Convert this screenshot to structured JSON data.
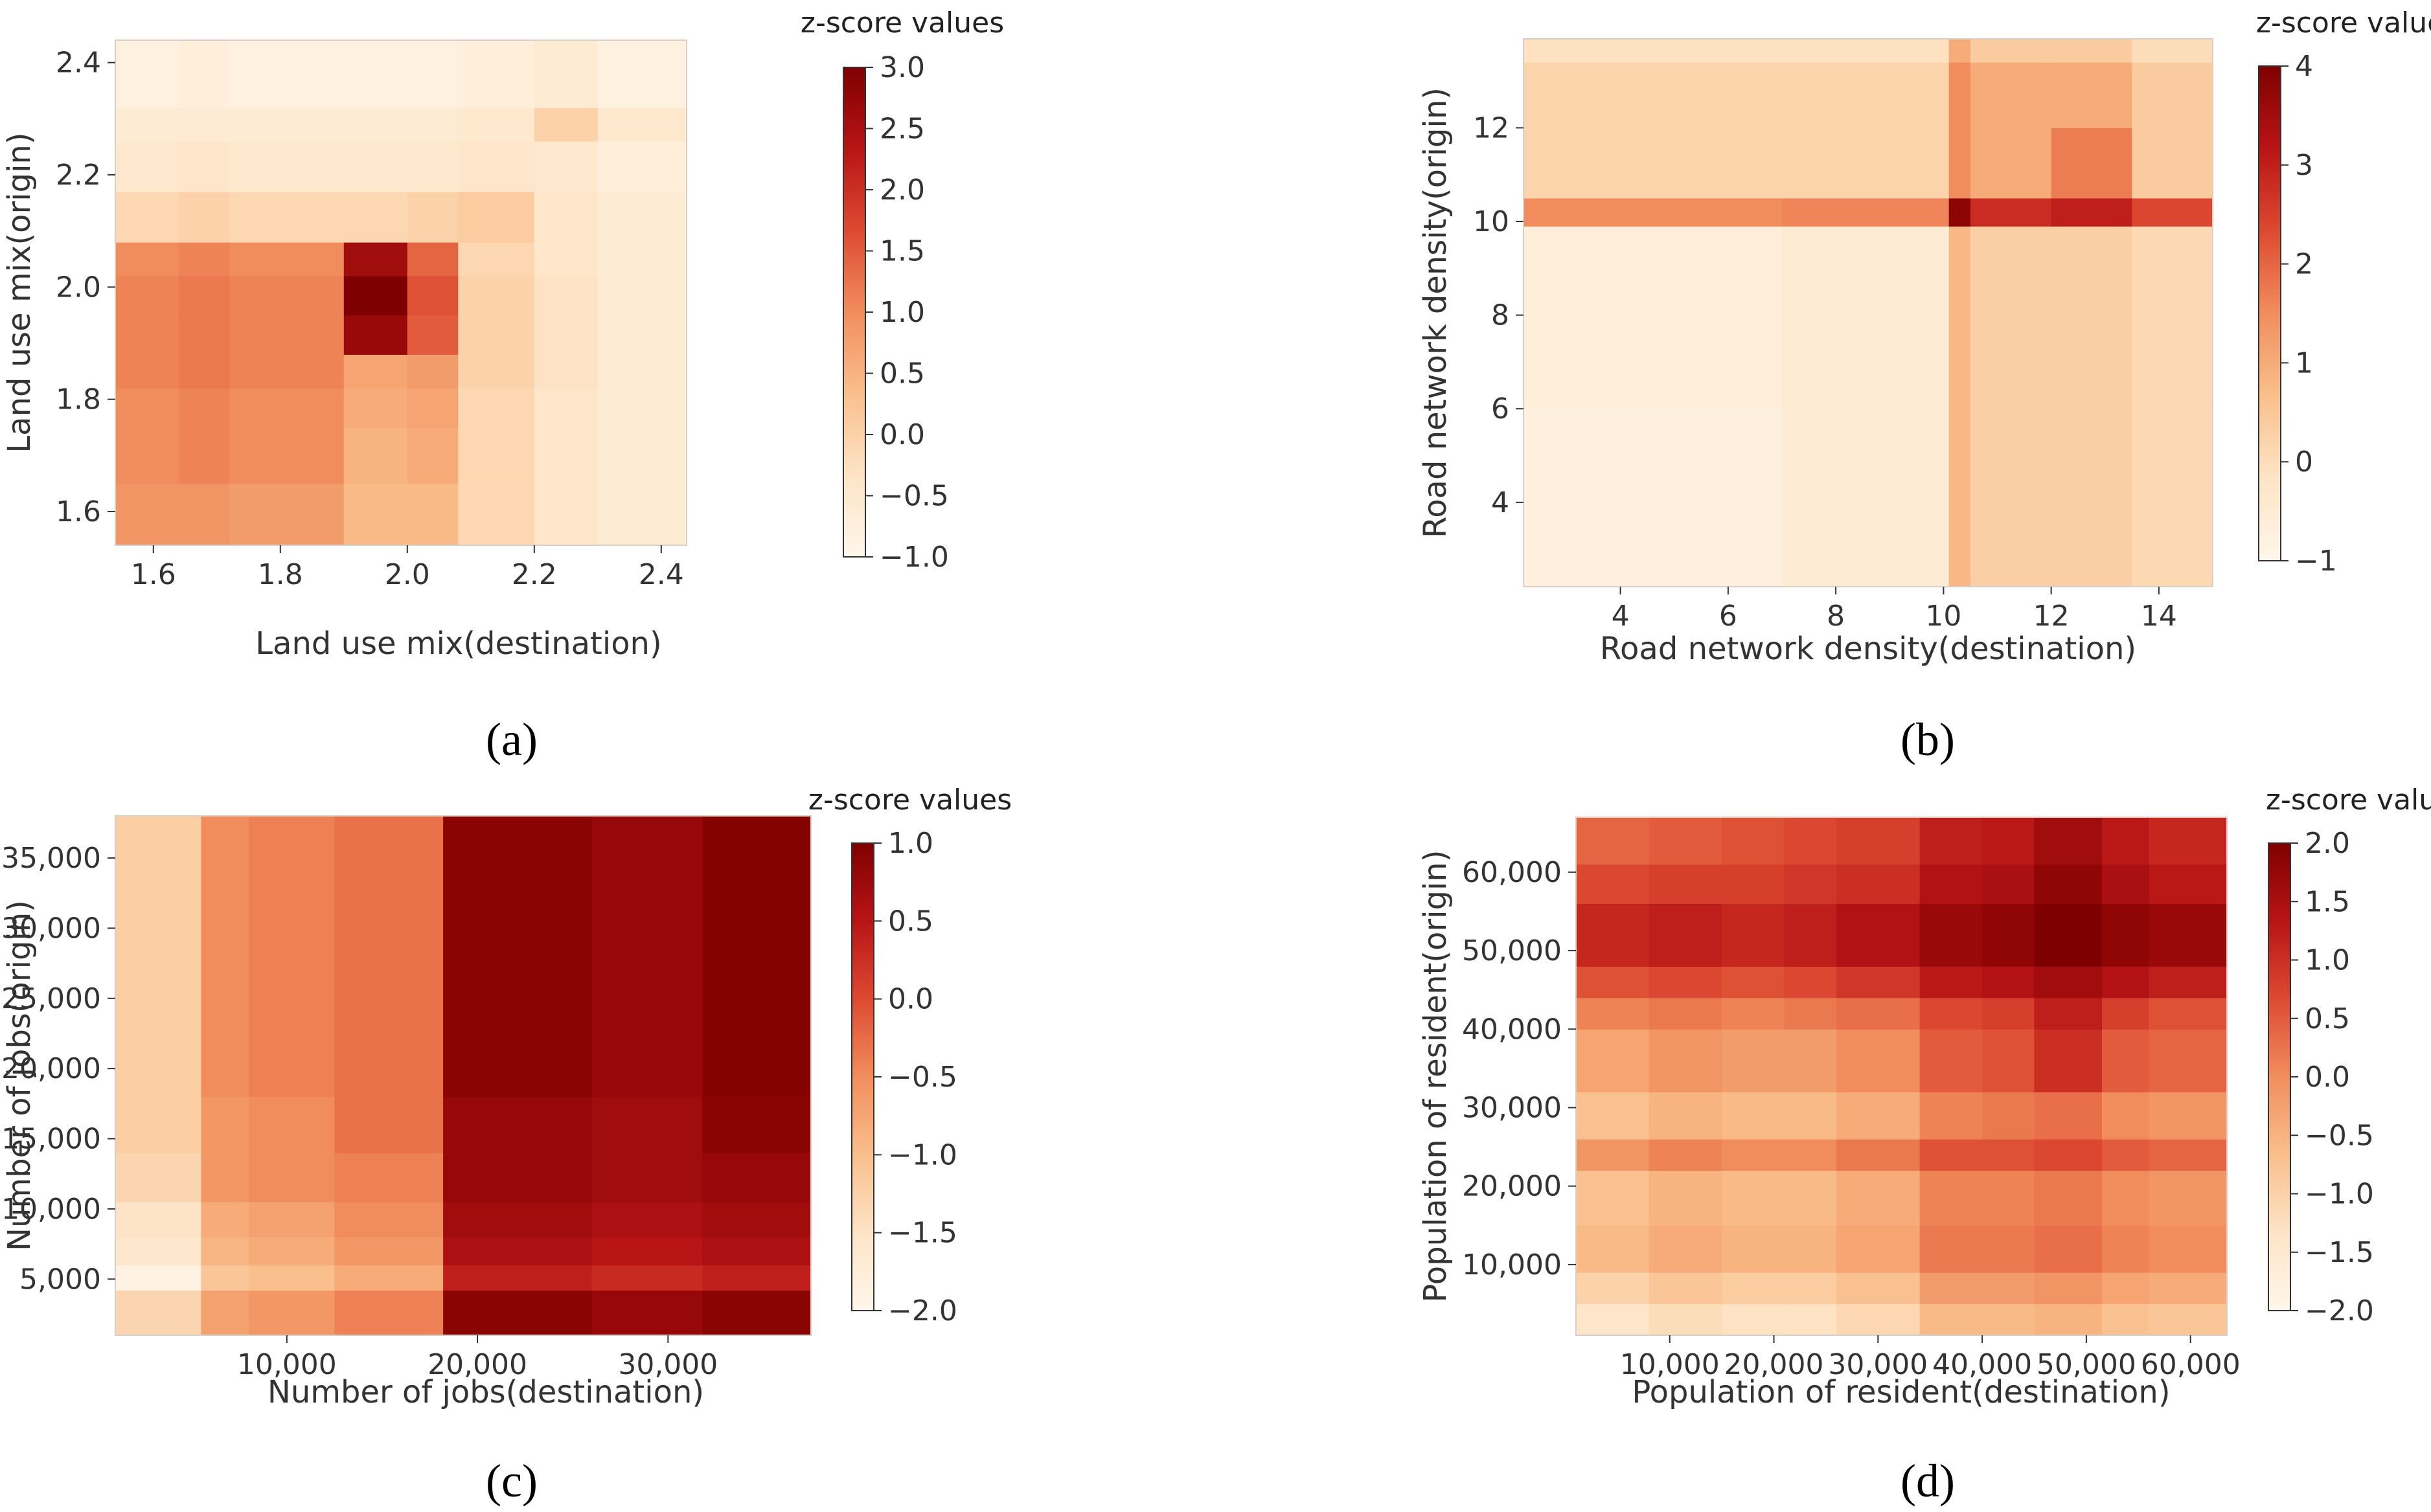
{
  "figure": {
    "panels": [
      {
        "caption_letter": "a",
        "caption": "(a)"
      },
      {
        "caption_letter": "b",
        "caption": "(b)"
      },
      {
        "caption_letter": "c",
        "caption": "(c)"
      },
      {
        "caption_letter": "d",
        "caption": "(d)"
      }
    ]
  },
  "colors": {
    "scale": [
      "#fff6ea",
      "#fde4c6",
      "#f9bf8c",
      "#f18d5d",
      "#dd4a31",
      "#b81416",
      "#7f0000"
    ]
  },
  "chart_data": [
    {
      "id": "a",
      "type": "heatmap",
      "title": "",
      "xlabel": "Land use mix(destination)",
      "ylabel": "Land use mix(origin)",
      "colorbar_title": "z-score values",
      "xlim": [
        1.54,
        2.44
      ],
      "ylim": [
        1.54,
        2.44
      ],
      "xticks": [
        1.6,
        1.8,
        2.0,
        2.2,
        2.4
      ],
      "xtick_labels": [
        "1.6",
        "1.8",
        "2.0",
        "2.2",
        "2.4"
      ],
      "yticks": [
        1.6,
        1.8,
        2.0,
        2.2,
        2.4
      ],
      "ytick_labels": [
        "1.6",
        "1.8",
        "2.0",
        "2.2",
        "2.4"
      ],
      "color_range": [
        -1.0,
        3.0
      ],
      "colorbar_ticks": [
        3.0,
        2.5,
        2.0,
        1.5,
        1.0,
        0.5,
        0.0,
        -0.5,
        -1.0
      ],
      "colorbar_tick_labels": [
        "3.0",
        "2.5",
        "2.0",
        "1.5",
        "1.0",
        "0.5",
        "0.0",
        "−0.5",
        "−1.0"
      ],
      "x_edges": [
        1.54,
        1.64,
        1.72,
        1.9,
        2.0,
        2.08,
        2.2,
        2.3,
        2.44
      ],
      "y_edges": [
        1.54,
        1.65,
        1.75,
        1.82,
        1.88,
        1.95,
        2.02,
        2.08,
        2.17,
        2.26,
        2.32,
        2.44
      ],
      "z": [
        [
          0.9,
          0.9,
          0.8,
          0.4,
          0.4,
          -0.1,
          -0.4,
          -0.6
        ],
        [
          1.0,
          1.1,
          1.0,
          0.5,
          0.6,
          -0.1,
          -0.4,
          -0.6
        ],
        [
          1.0,
          1.1,
          1.0,
          0.6,
          0.7,
          -0.1,
          -0.4,
          -0.6
        ],
        [
          1.1,
          1.2,
          1.1,
          0.7,
          0.8,
          0.0,
          -0.3,
          -0.6
        ],
        [
          1.1,
          1.2,
          1.1,
          2.7,
          1.5,
          0.0,
          -0.3,
          -0.6
        ],
        [
          1.1,
          1.2,
          1.1,
          3.0,
          1.6,
          0.0,
          -0.3,
          -0.6
        ],
        [
          1.0,
          1.1,
          1.0,
          2.6,
          1.4,
          -0.1,
          -0.4,
          -0.6
        ],
        [
          -0.1,
          0.0,
          -0.1,
          -0.1,
          0.0,
          0.1,
          -0.4,
          -0.6
        ],
        [
          -0.5,
          -0.4,
          -0.5,
          -0.5,
          -0.5,
          -0.4,
          -0.5,
          -0.7
        ],
        [
          -0.6,
          -0.6,
          -0.6,
          -0.6,
          -0.6,
          -0.5,
          0.0,
          -0.5
        ],
        [
          -0.8,
          -0.7,
          -0.8,
          -0.8,
          -0.8,
          -0.7,
          -0.6,
          -0.8
        ]
      ]
    },
    {
      "id": "b",
      "type": "heatmap",
      "title": "",
      "xlabel": "Road network density(destination)",
      "ylabel": "Road network density(origin)",
      "colorbar_title": "z-score values",
      "xlim": [
        2.2,
        15.0
      ],
      "ylim": [
        2.2,
        13.9
      ],
      "xticks": [
        4,
        6,
        8,
        10,
        12,
        14
      ],
      "xtick_labels": [
        "4",
        "6",
        "8",
        "10",
        "12",
        "14"
      ],
      "yticks": [
        4,
        6,
        8,
        10,
        12
      ],
      "ytick_labels": [
        "4",
        "6",
        "8",
        "10",
        "12"
      ],
      "color_range": [
        -1,
        4
      ],
      "colorbar_ticks": [
        4,
        3,
        2,
        1,
        0,
        -1
      ],
      "colorbar_tick_labels": [
        "4",
        "3",
        "2",
        "1",
        "0",
        "−1"
      ],
      "x_edges": [
        2.2,
        7.0,
        10.1,
        10.5,
        12.0,
        13.5,
        15.0
      ],
      "y_edges": [
        2.2,
        6.0,
        9.9,
        10.5,
        12.0,
        13.4,
        13.9
      ],
      "z": [
        [
          -0.7,
          -0.5,
          0.8,
          0.3,
          0.3,
          0.1
        ],
        [
          -0.6,
          -0.5,
          0.8,
          0.3,
          0.3,
          0.1
        ],
        [
          1.5,
          1.6,
          3.8,
          2.8,
          3.0,
          2.4
        ],
        [
          0.2,
          0.2,
          1.5,
          1.0,
          1.7,
          0.4
        ],
        [
          0.2,
          0.2,
          1.5,
          1.0,
          1.0,
          0.4
        ],
        [
          -0.1,
          -0.1,
          1.0,
          0.4,
          0.4,
          0.0
        ]
      ]
    },
    {
      "id": "c",
      "type": "heatmap",
      "title": "",
      "xlabel": "Number of jobs(destination)",
      "ylabel": "Number of jobs(origin)",
      "colorbar_title": "z-score values",
      "xlim": [
        1000,
        37500
      ],
      "ylim": [
        1000,
        38000
      ],
      "xticks": [
        10000,
        20000,
        30000
      ],
      "xtick_labels": [
        "10,000",
        "20,000",
        "30,000"
      ],
      "yticks": [
        5000,
        10000,
        15000,
        20000,
        25000,
        30000,
        35000
      ],
      "ytick_labels": [
        "5,000",
        "10,000",
        "15,000",
        "20,000",
        "25,000",
        "30,000",
        "35,000"
      ],
      "color_range": [
        -2.0,
        1.0
      ],
      "colorbar_ticks": [
        1.0,
        0.5,
        0.0,
        -0.5,
        -1.0,
        -1.5,
        -2.0
      ],
      "colorbar_tick_labels": [
        "1.0",
        "0.5",
        "0.0",
        "−0.5",
        "−1.0",
        "−1.5",
        "−2.0"
      ],
      "x_edges": [
        1000,
        5500,
        8000,
        12500,
        18200,
        26000,
        31800,
        37500
      ],
      "y_edges": [
        1000,
        4200,
        6000,
        8000,
        10500,
        14000,
        18000,
        38000
      ],
      "z": [
        [
          -1.3,
          -0.7,
          -0.6,
          -0.4,
          0.9,
          0.8,
          0.9
        ],
        [
          -1.9,
          -1.1,
          -1.0,
          -0.8,
          0.4,
          0.3,
          0.4
        ],
        [
          -1.6,
          -0.9,
          -0.8,
          -0.6,
          0.6,
          0.5,
          0.6
        ],
        [
          -1.5,
          -0.8,
          -0.7,
          -0.5,
          0.7,
          0.6,
          0.7
        ],
        [
          -1.3,
          -0.6,
          -0.5,
          -0.4,
          0.8,
          0.7,
          0.8
        ],
        [
          -1.2,
          -0.6,
          -0.5,
          -0.3,
          0.8,
          0.7,
          0.9
        ],
        [
          -1.2,
          -0.5,
          -0.4,
          -0.3,
          0.9,
          0.8,
          0.95
        ]
      ]
    },
    {
      "id": "d",
      "type": "heatmap",
      "title": "",
      "xlabel": "Population of resident(destination)",
      "ylabel": "Population of resident(origin)",
      "colorbar_title": "z-score values",
      "xlim": [
        1000,
        63500
      ],
      "ylim": [
        1000,
        67000
      ],
      "xticks": [
        10000,
        20000,
        30000,
        40000,
        50000,
        60000
      ],
      "xtick_labels": [
        "10,000",
        "20,000",
        "30,000",
        "40,000",
        "50,000",
        "60,000"
      ],
      "yticks": [
        10000,
        20000,
        30000,
        40000,
        50000,
        60000
      ],
      "ytick_labels": [
        "10,000",
        "20,000",
        "30,000",
        "40,000",
        "50,000",
        "60,000"
      ],
      "color_range": [
        -2.0,
        2.0
      ],
      "colorbar_ticks": [
        2.0,
        1.5,
        1.0,
        0.5,
        0.0,
        -0.5,
        -1.0,
        -1.5,
        -2.0
      ],
      "colorbar_tick_labels": [
        "2.0",
        "1.5",
        "1.0",
        "0.5",
        "0.0",
        "−0.5",
        "−1.0",
        "−1.5",
        "−2.0"
      ],
      "x_edges": [
        1000,
        8000,
        15000,
        21000,
        26000,
        34000,
        40000,
        45000,
        51500,
        56000,
        63500
      ],
      "y_edges": [
        1000,
        5000,
        9000,
        15000,
        22000,
        26000,
        32000,
        40000,
        44000,
        48000,
        56000,
        61000,
        67000
      ],
      "z": [
        [
          -1.4,
          -1.2,
          -1.3,
          -1.3,
          -1.1,
          -0.6,
          -0.6,
          -0.5,
          -0.7,
          -0.8
        ],
        [
          -1.0,
          -0.8,
          -0.9,
          -0.9,
          -0.7,
          -0.2,
          -0.2,
          -0.1,
          -0.3,
          -0.4
        ],
        [
          -0.6,
          -0.4,
          -0.5,
          -0.5,
          -0.3,
          0.2,
          0.2,
          0.3,
          0.1,
          0.0
        ],
        [
          -0.7,
          -0.5,
          -0.6,
          -0.6,
          -0.4,
          0.1,
          0.1,
          0.2,
          0.0,
          -0.1
        ],
        [
          -0.1,
          0.1,
          0.0,
          0.0,
          0.2,
          0.6,
          0.6,
          0.7,
          0.5,
          0.4
        ],
        [
          -0.7,
          -0.5,
          -0.6,
          -0.6,
          -0.4,
          0.1,
          0.2,
          0.3,
          0.0,
          -0.1
        ],
        [
          -0.3,
          -0.1,
          -0.2,
          -0.2,
          0.0,
          0.5,
          0.6,
          1.0,
          0.5,
          0.4
        ],
        [
          0.1,
          0.2,
          0.1,
          0.2,
          0.3,
          0.7,
          0.8,
          1.2,
          0.8,
          0.6
        ],
        [
          0.6,
          0.7,
          0.6,
          0.7,
          0.9,
          1.3,
          1.4,
          1.6,
          1.4,
          1.2
        ],
        [
          1.1,
          1.2,
          1.1,
          1.2,
          1.4,
          1.7,
          1.8,
          2.0,
          1.8,
          1.7
        ],
        [
          0.7,
          0.8,
          0.8,
          0.9,
          1.0,
          1.4,
          1.5,
          1.8,
          1.5,
          1.3
        ],
        [
          0.4,
          0.5,
          0.6,
          0.7,
          0.8,
          1.2,
          1.3,
          1.6,
          1.3,
          1.1
        ]
      ]
    }
  ]
}
